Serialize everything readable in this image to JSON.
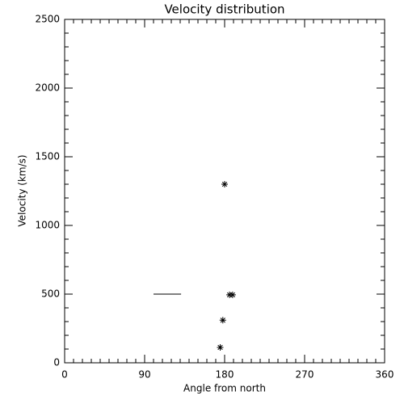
{
  "chart_data": {
    "type": "scatter",
    "title": "Velocity distribution",
    "x_label": "Angle from north",
    "y_label": "Velocity (km/s)",
    "xlim": [
      0,
      360
    ],
    "xticks": [
      0,
      90,
      180,
      270,
      360
    ],
    "ylim": [
      0,
      2500
    ],
    "yticks": [
      0,
      500,
      1000,
      1500,
      2000,
      2500
    ],
    "minor_ticks": {
      "x": 9,
      "y": 5
    },
    "color": "#000000",
    "series": [
      {
        "marker": "asterisk",
        "x": [
          180,
          178,
          175,
          185.5,
          189
        ],
        "values": [
          1300,
          310,
          112,
          495,
          495
        ]
      },
      {
        "marker": "line",
        "x": [
          100,
          131
        ],
        "values": [
          500,
          500
        ]
      }
    ]
  }
}
